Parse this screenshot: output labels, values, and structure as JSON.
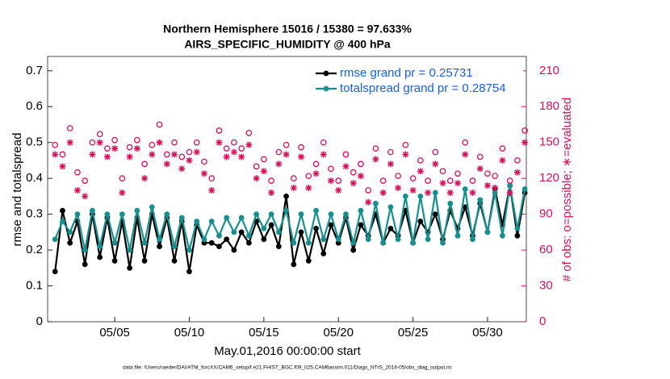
{
  "chart_data": {
    "type": "line",
    "title": "Northern Hemisphere 15016 / 15380 = 97.633%",
    "subtitle": "AIRS_SPECIFIC_HUMIDITY @ 400 hPa",
    "x_label": "May.01,2016 00:00:00 start",
    "y_label": "rmse and totalspread",
    "y2_label": "# of obs: o=possible; ∗=evaluated",
    "footer": "data file: /Users/raeder/DAI/ATM_forcXX/CAM6_setup/f.e21.FHIST_BGC.f09_025.CAM6assim.011/Diags_NTrS_2016-05/obs_diag_output.nc",
    "legend": "upper right",
    "legend_text_color": "#1a5fd6",
    "y2_color": "#d6105a",
    "xlim": [
      0.5,
      32.6
    ],
    "xticks": [
      {
        "value": 5,
        "label": "05/05"
      },
      {
        "value": 10,
        "label": "05/10"
      },
      {
        "value": 15,
        "label": "05/15"
      },
      {
        "value": 20,
        "label": "05/20"
      },
      {
        "value": 25,
        "label": "05/25"
      },
      {
        "value": 30,
        "label": "05/30"
      }
    ],
    "ylim": [
      0,
      0.74
    ],
    "yticks": [
      0,
      0.1,
      0.2,
      0.3,
      0.4,
      0.5,
      0.6,
      0.7
    ],
    "y2lim": [
      0,
      222
    ],
    "y2ticks": [
      0,
      30,
      60,
      90,
      120,
      150,
      180,
      210
    ],
    "x": [
      1,
      1.5,
      2,
      2.5,
      3,
      3.5,
      4,
      4.5,
      5,
      5.5,
      6,
      6.5,
      7,
      7.5,
      8,
      8.5,
      9,
      9.5,
      10,
      10.5,
      11,
      11.5,
      12,
      12.5,
      13,
      13.5,
      14,
      14.5,
      15,
      15.5,
      16,
      16.5,
      17,
      17.5,
      18,
      18.5,
      19,
      19.5,
      20,
      20.5,
      21,
      21.5,
      22,
      22.5,
      23,
      23.5,
      24,
      24.5,
      25,
      25.5,
      26,
      26.5,
      27,
      27.5,
      28,
      28.5,
      29,
      29.5,
      30,
      30.5,
      31,
      31.5,
      32,
      32.5
    ],
    "series": [
      {
        "name": "rmse grand pr = 0.25731",
        "color": "#000000",
        "marker": "dot",
        "values": [
          0.14,
          0.31,
          0.22,
          0.28,
          0.16,
          0.3,
          0.18,
          0.29,
          0.17,
          0.28,
          0.15,
          0.29,
          0.17,
          0.3,
          0.21,
          0.29,
          0.17,
          0.28,
          0.14,
          0.27,
          0.22,
          0.22,
          0.21,
          0.23,
          0.2,
          0.25,
          0.22,
          0.28,
          0.23,
          0.27,
          0.21,
          0.35,
          0.16,
          0.25,
          0.17,
          0.26,
          0.19,
          0.27,
          0.22,
          0.29,
          0.2,
          0.27,
          0.24,
          0.3,
          0.22,
          0.26,
          0.24,
          0.31,
          0.22,
          0.28,
          0.25,
          0.3,
          0.23,
          0.31,
          0.26,
          0.32,
          0.24,
          0.33,
          0.25,
          0.37,
          0.27,
          0.38,
          0.24,
          0.36
        ]
      },
      {
        "name": "totalspread grand pr = 0.28754",
        "color": "#178f8f",
        "marker": "dot",
        "values": [
          0.23,
          0.28,
          0.25,
          0.3,
          0.2,
          0.31,
          0.21,
          0.3,
          0.22,
          0.3,
          0.2,
          0.31,
          0.22,
          0.32,
          0.23,
          0.3,
          0.21,
          0.29,
          0.2,
          0.28,
          0.23,
          0.28,
          0.24,
          0.29,
          0.25,
          0.29,
          0.24,
          0.3,
          0.26,
          0.3,
          0.25,
          0.31,
          0.22,
          0.3,
          0.22,
          0.31,
          0.23,
          0.3,
          0.23,
          0.3,
          0.22,
          0.31,
          0.23,
          0.33,
          0.22,
          0.32,
          0.23,
          0.35,
          0.22,
          0.35,
          0.23,
          0.36,
          0.22,
          0.33,
          0.24,
          0.37,
          0.23,
          0.34,
          0.25,
          0.36,
          0.24,
          0.38,
          0.26,
          0.37
        ]
      },
      {
        "color": "#d6105a",
        "marker": "o",
        "axis": "y2",
        "values": [
          148,
          140,
          162,
          125,
          118,
          150,
          157,
          145,
          152,
          120,
          146,
          152,
          132,
          148,
          165,
          140,
          150,
          138,
          142,
          150,
          134,
          120,
          160,
          145,
          150,
          145,
          158,
          130,
          136,
          118,
          142,
          148,
          120,
          146,
          122,
          132,
          150,
          128,
          118,
          140,
          125,
          132,
          110,
          145,
          118,
          142,
          122,
          148,
          120,
          135,
          118,
          142,
          126,
          118,
          124,
          150,
          118,
          138,
          124,
          122,
          145,
          118,
          135,
          160
        ]
      },
      {
        "color": "#d6105a",
        "marker": "*",
        "axis": "y2",
        "values": [
          140,
          130,
          150,
          110,
          105,
          140,
          150,
          138,
          145,
          108,
          138,
          145,
          120,
          140,
          150,
          132,
          140,
          128,
          135,
          142,
          124,
          110,
          150,
          138,
          142,
          138,
          148,
          120,
          126,
          108,
          132,
          140,
          112,
          138,
          112,
          124,
          140,
          118,
          110,
          130,
          116,
          122,
          100,
          136,
          108,
          132,
          112,
          140,
          110,
          126,
          108,
          132,
          116,
          108,
          116,
          140,
          108,
          128,
          114,
          112,
          135,
          108,
          125,
          150
        ]
      }
    ]
  }
}
